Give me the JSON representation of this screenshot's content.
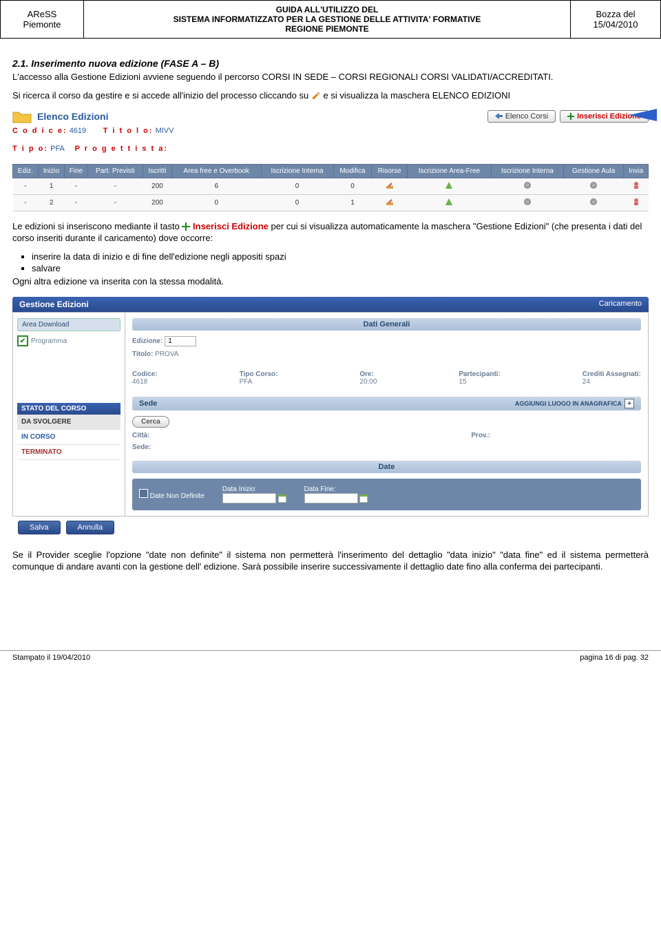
{
  "header": {
    "left1": "AReSS",
    "left2": "Piemonte",
    "mid1": "GUIDA ALL'UTILIZZO DEL",
    "mid2": "SISTEMA INFORMATIZZATO PER LA GESTIONE DELLE ATTIVITA' FORMATIVE",
    "mid3": "REGIONE PIEMONTE",
    "right1": "Bozza del",
    "right2": "15/04/2010"
  },
  "section": {
    "num_title": "2.1.   Inserimento nuova edizione (FASE A – B)",
    "p1a": "L'accesso alla Gestione Edizioni avviene seguendo il percorso CORSI IN SEDE – CORSI REGIONALI CORSI VALIDATI/ACCREDITATI.",
    "p1b_a": "Si ricerca il corso da gestire e si accede all'inizio del processo cliccando su ",
    "p1b_b": " e si visualizza la maschera ELENCO EDIZIONI"
  },
  "elenco": {
    "title": "Elenco Edizioni",
    "btn_back": "Elenco Corsi",
    "btn_new": "Inserisci Edizione",
    "codice_lbl": "C o d i c e:",
    "codice_val": "4619",
    "titolo_lbl": "T i t o l o:",
    "titolo_val": "MIVV",
    "tipo_lbl": "T i p o:",
    "tipo_val": "PFA",
    "prog_lbl": "P r o g e t t i s t a:",
    "cols": [
      "Ediz.",
      "Inizio",
      "Fine",
      "Part. Previsti",
      "Iscritti",
      "Area free e Overbook",
      "Iscrizione Interna",
      "Modifica",
      "Risorse",
      "Iscrizione Area-Free",
      "Iscrizione Interna",
      "Gestione Aula",
      "Invia"
    ],
    "rows": [
      [
        "-",
        "1",
        "-",
        "-",
        "200",
        "6",
        "0",
        "0"
      ],
      [
        "-",
        "2",
        "-",
        "-",
        "200",
        "0",
        "0",
        "1"
      ]
    ]
  },
  "para2": {
    "a": "Le edizioni si inseriscono mediante il tasto ",
    "link": "Inserisci Edizione",
    "b": " per cui si visualizza automaticamente la maschera \"Gestione Edizioni\" (che presenta i dati del corso inseriti durante il caricamento) dove occorre:",
    "li1": "inserire la data di inizio e di fine dell'edizione negli appositi spazi",
    "li2": "salvare",
    "c": "Ogni altra edizione va inserita con la stessa modalità."
  },
  "gestione": {
    "title": "Gestione Edizioni",
    "mode": "Caricamento",
    "area_dl": "Area Download",
    "programma": "Programma",
    "stato_title": "STATO DEL CORSO",
    "stato": [
      "DA SVOLGERE",
      "IN CORSO",
      "TERMINATO"
    ],
    "dati_gen": "Dati Generali",
    "ediz_lbl": "Edizione:",
    "ediz_val": "1",
    "titolo_lbl": "Titolo:",
    "titolo_val": "PROVA",
    "codice_lbl": "Codice:",
    "codice_val": "4618",
    "tipo_lbl": "Tipo Corso:",
    "tipo_val": "PFA",
    "ore_lbl": "Ore:",
    "ore_val": "20:00",
    "part_lbl": "Partecipanti:",
    "part_val": "15",
    "cred_lbl": "Crediti Assegnati:",
    "cred_val": "24",
    "sede": "Sede",
    "aggiungi": "AGGIUNGI LUOGO IN ANAGRAFICA",
    "cerca": "Cerca",
    "citta": "Città:",
    "prov": "Prov.:",
    "sede_lbl": "Sede:",
    "date": "Date",
    "date_nd": "Date Non Definite",
    "di": "Data Inizio:",
    "df": "Data Fine:",
    "salva": "Salva",
    "annulla": "Annulla"
  },
  "para3": "Se il Provider sceglie l'opzione \"date non definite\" il sistema non permetterà l'inserimento del dettaglio \"data inizio\" \"data fine\" ed il sistema permetterà comunque di andare avanti con la gestione dell' edizione. Sarà possibile inserire successivamente il dettaglio date fino alla conferma dei partecipanti.",
  "footer": {
    "left": "Stampato il 19/04/2010",
    "right": "pagina 16 di pag. 32"
  }
}
